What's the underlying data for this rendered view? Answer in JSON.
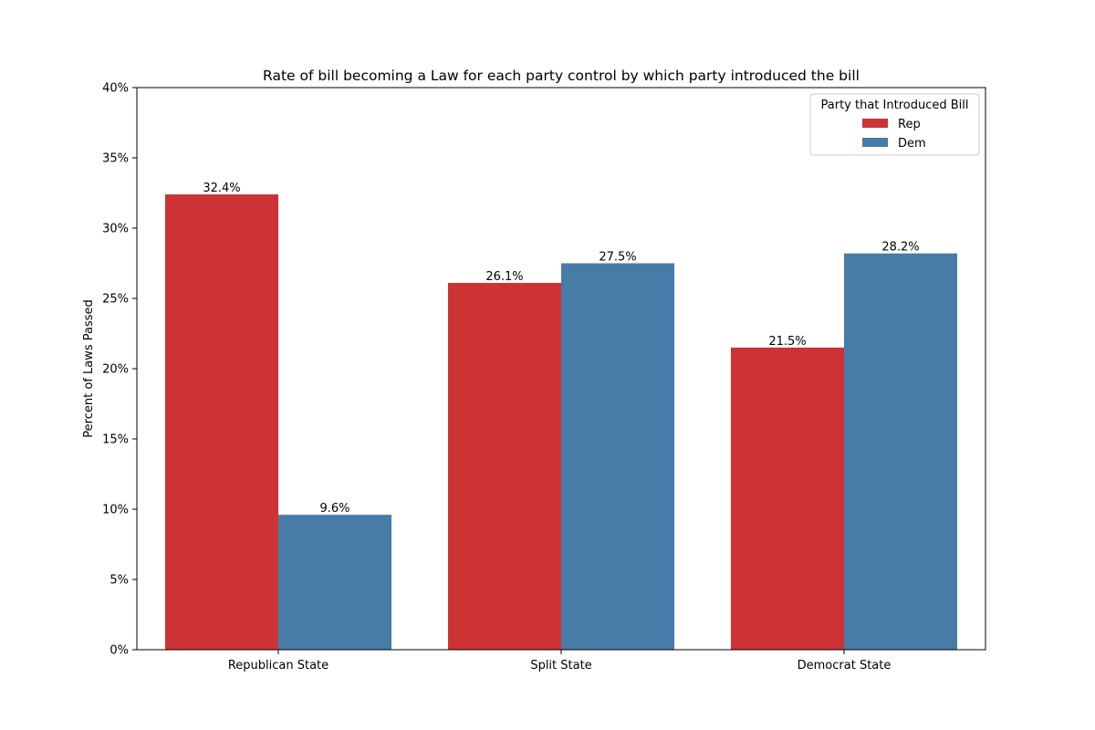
{
  "chart_data": {
    "type": "bar",
    "title": "Rate of bill becoming a Law for each party control by which party introduced the bill",
    "xlabel": "",
    "ylabel": "Percent of Laws Passed",
    "categories": [
      "Republican State",
      "Split State",
      "Democrat State"
    ],
    "series": [
      {
        "name": "Rep",
        "color": "#cd3235",
        "values": [
          32.4,
          26.1,
          21.5
        ],
        "labels": [
          "32.4%",
          "26.1%",
          "21.5%"
        ]
      },
      {
        "name": "Dem",
        "color": "#477ca8",
        "values": [
          9.6,
          27.5,
          28.2
        ],
        "labels": [
          "9.6%",
          "27.5%",
          "28.2%"
        ]
      }
    ],
    "ylim": [
      0,
      40
    ],
    "yticks": [
      0,
      5,
      10,
      15,
      20,
      25,
      30,
      35,
      40
    ],
    "ytick_labels": [
      "0%",
      "5%",
      "10%",
      "15%",
      "20%",
      "25%",
      "30%",
      "35%",
      "40%"
    ],
    "grid": false,
    "legend": {
      "title": "Party that Introduced Bill",
      "placement": "top-right"
    }
  }
}
